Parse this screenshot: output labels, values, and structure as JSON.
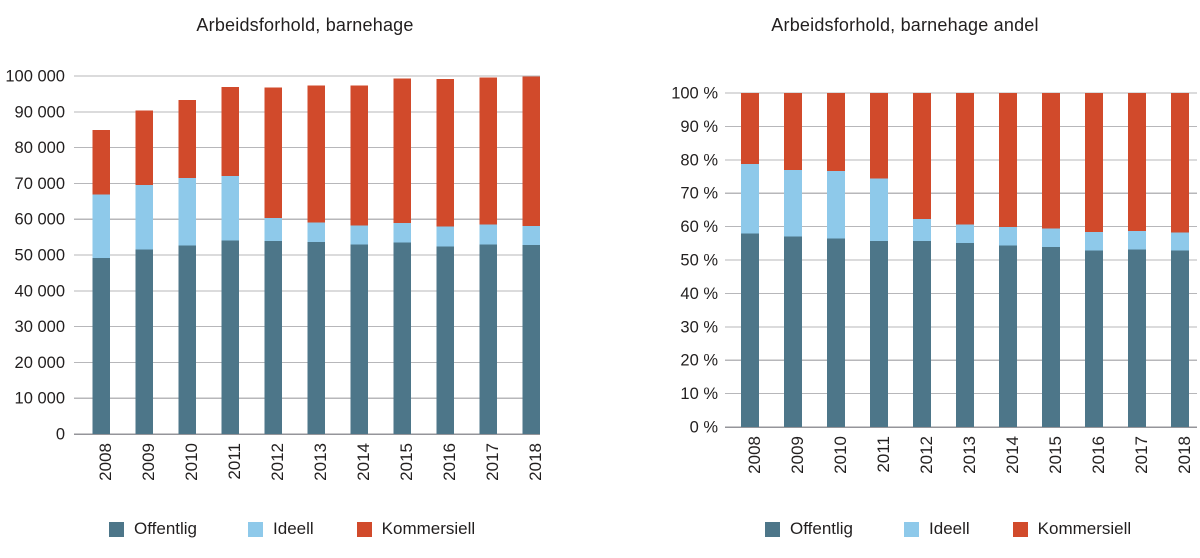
{
  "figure": {
    "background": "#ffffff",
    "text_color": "#221f1f",
    "gridline_color": "#b7b7ba",
    "axis_line_color": "#95959a"
  },
  "chart_data": [
    {
      "id": "absolute",
      "type": "bar",
      "stacked": true,
      "grid": true,
      "legend_position": "bottom",
      "title": "Arbeidsforhold, barnehage",
      "xlabel": "",
      "ylabel": "",
      "ylim": [
        0,
        100000
      ],
      "ytick_step": 10000,
      "yticks_top_to_bottom": [
        "100 000",
        "90 000",
        "80 000",
        "70 000",
        "60 000",
        "50 000",
        "40 000",
        "30 000",
        "20 000",
        "10 000",
        "0"
      ],
      "categories": [
        "2008",
        "2009",
        "2010",
        "2011",
        "2012",
        "2013",
        "2014",
        "2015",
        "2016",
        "2017",
        "2018"
      ],
      "series": [
        {
          "name": "Offentlig",
          "color": "#4d7689",
          "values": [
            49200,
            51500,
            52700,
            54000,
            53900,
            53700,
            52900,
            53500,
            52400,
            52900,
            52800
          ]
        },
        {
          "name": "Ideell",
          "color": "#8ec9ea",
          "values": [
            17700,
            18100,
            18800,
            18100,
            6400,
            5400,
            5400,
            5500,
            5600,
            5600,
            5300
          ]
        },
        {
          "name": "Kommersiell",
          "color": "#d14a2b",
          "values": [
            18000,
            20800,
            21800,
            24800,
            36500,
            38300,
            39000,
            40300,
            41200,
            41100,
            41800
          ]
        }
      ]
    },
    {
      "id": "share",
      "type": "bar",
      "stacked": true,
      "grid": true,
      "legend_position": "bottom",
      "title": "Arbeidsforhold, barnehage andel",
      "xlabel": "",
      "ylabel": "",
      "ylim": [
        0,
        100
      ],
      "ytick_step": 10,
      "yticks_top_to_bottom": [
        "100 %",
        "90 %",
        "80 %",
        "70 %",
        "60 %",
        "50 %",
        "40 %",
        "30 %",
        "20 %",
        "10 %",
        "0 %"
      ],
      "categories": [
        "2008",
        "2009",
        "2010",
        "2011",
        "2012",
        "2013",
        "2014",
        "2015",
        "2016",
        "2017",
        "2018"
      ],
      "series": [
        {
          "name": "Offentlig",
          "color": "#4d7689",
          "values": [
            58.0,
            57.0,
            56.5,
            55.7,
            55.7,
            55.1,
            54.4,
            53.9,
            52.8,
            53.1,
            52.9
          ]
        },
        {
          "name": "Ideell",
          "color": "#8ec9ea",
          "values": [
            20.8,
            20.0,
            20.1,
            18.7,
            6.6,
            5.5,
            5.5,
            5.5,
            5.6,
            5.6,
            5.3
          ]
        },
        {
          "name": "Kommersiell",
          "color": "#d14a2b",
          "values": [
            21.2,
            23.0,
            23.4,
            25.6,
            37.7,
            39.4,
            40.1,
            40.6,
            41.6,
            41.3,
            41.8
          ]
        }
      ]
    }
  ]
}
